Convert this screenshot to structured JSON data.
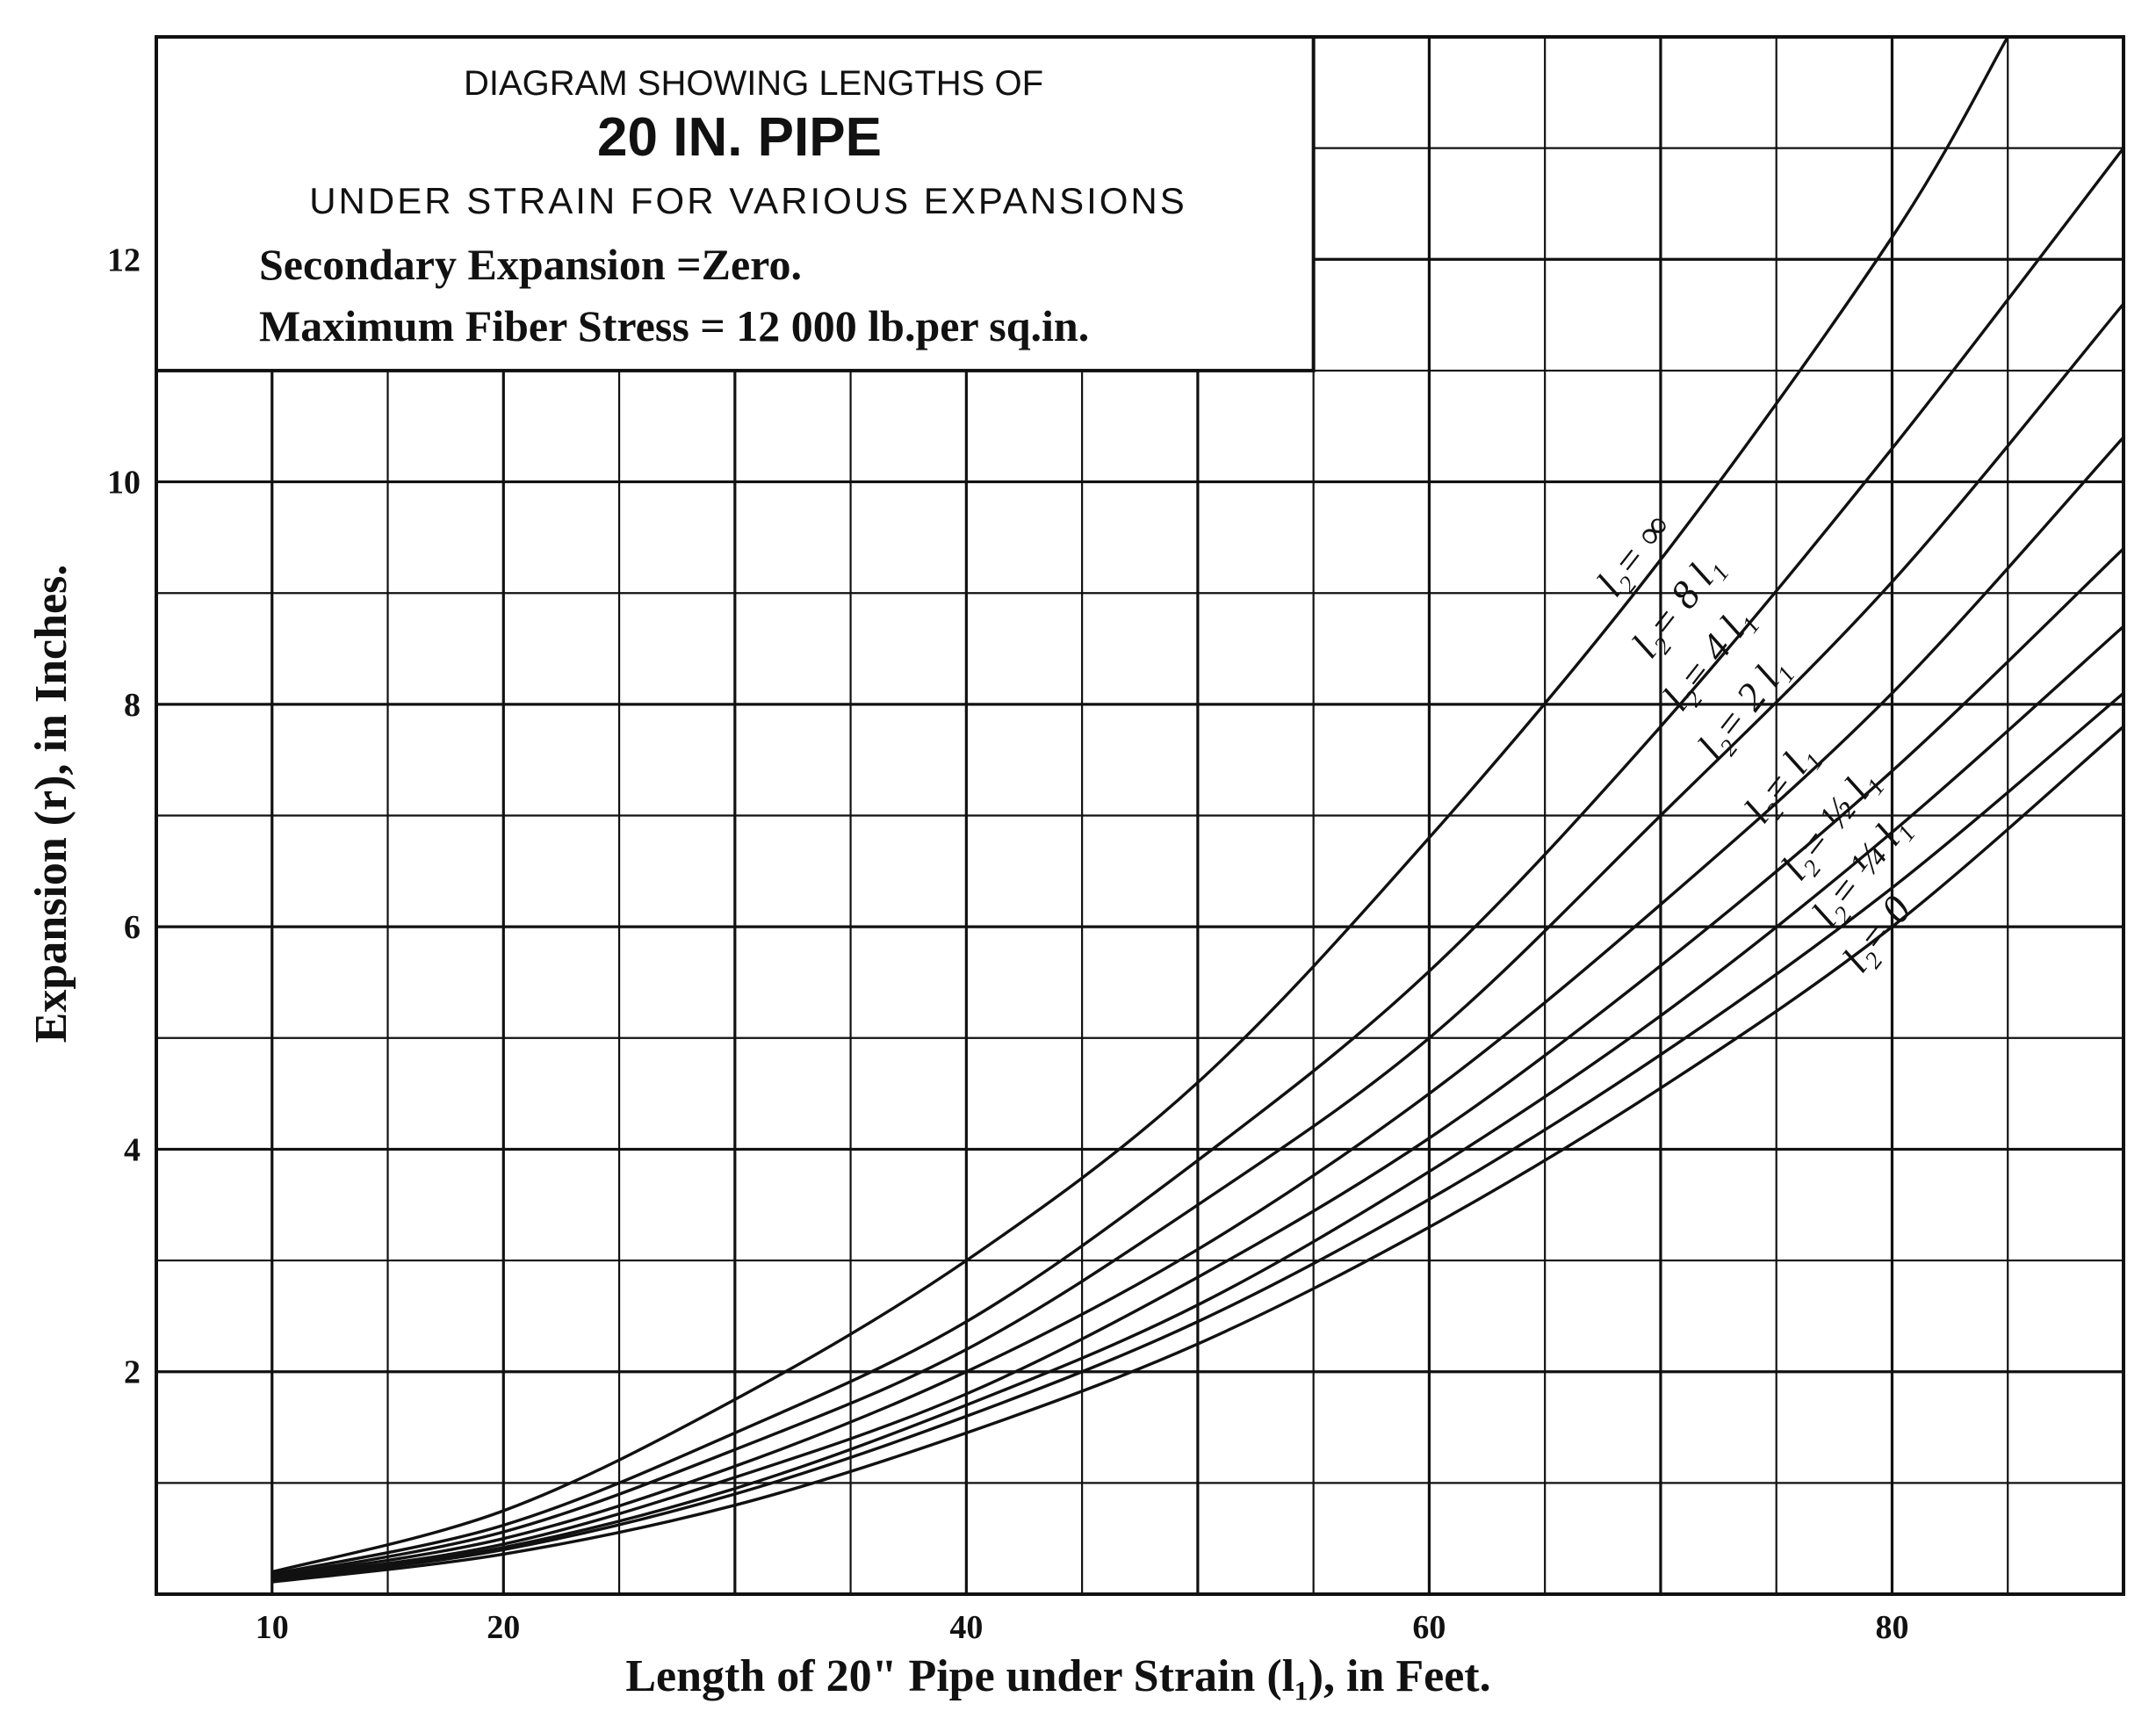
{
  "chart_data": {
    "type": "line",
    "title_lines": [
      "DIAGRAM SHOWING LENGTHS OF",
      "20 IN. PIPE",
      "UNDER STRAIN FOR VARIOUS EXPANSIONS",
      "Secondary Expansion =Zero.",
      "Maximum Fiber Stress = 12 000 lb.per sq.in."
    ],
    "xlabel": "Length of 20\" Pipe under Strain (l₁), in Feet.",
    "ylabel": "Expansion (r), in Inches.",
    "xlim": [
      5,
      90
    ],
    "ylim": [
      0,
      14
    ],
    "x_ticks": [
      10,
      20,
      40,
      60,
      80
    ],
    "y_ticks": [
      2,
      4,
      6,
      8,
      10,
      12
    ],
    "grid": true,
    "series": [
      {
        "name": "l₂= ∞",
        "x": [
          10,
          20,
          30,
          40,
          50,
          60,
          70,
          80,
          85
        ],
        "y": [
          0.2,
          0.75,
          1.75,
          3.0,
          4.6,
          6.8,
          9.3,
          12.2,
          14.0
        ]
      },
      {
        "name": "l₂= 8 l₁",
        "x": [
          10,
          20,
          30,
          40,
          50,
          60,
          70,
          80,
          90
        ],
        "y": [
          0.18,
          0.62,
          1.45,
          2.45,
          3.9,
          5.6,
          7.8,
          10.3,
          13.0
        ]
      },
      {
        "name": "l₂= 4 l₁",
        "x": [
          10,
          20,
          30,
          40,
          50,
          60,
          70,
          80,
          90
        ],
        "y": [
          0.16,
          0.56,
          1.3,
          2.2,
          3.5,
          5.0,
          7.0,
          9.1,
          11.6
        ]
      },
      {
        "name": "l₂= 2 l₁",
        "x": [
          10,
          20,
          30,
          40,
          50,
          60,
          70,
          80,
          90
        ],
        "y": [
          0.15,
          0.5,
          1.15,
          2.0,
          3.1,
          4.5,
          6.2,
          8.1,
          10.4
        ]
      },
      {
        "name": "l₂= l₁",
        "x": [
          10,
          20,
          30,
          40,
          50,
          60,
          70,
          80,
          90
        ],
        "y": [
          0.14,
          0.45,
          1.05,
          1.8,
          2.85,
          4.1,
          5.65,
          7.4,
          9.4
        ]
      },
      {
        "name": "l₂= ½ l₁",
        "x": [
          10,
          20,
          30,
          40,
          50,
          60,
          70,
          80,
          90
        ],
        "y": [
          0.13,
          0.42,
          0.95,
          1.7,
          2.6,
          3.8,
          5.2,
          6.85,
          8.7
        ]
      },
      {
        "name": "l₂= ¼ l₁",
        "x": [
          10,
          20,
          30,
          40,
          50,
          60,
          70,
          80,
          90
        ],
        "y": [
          0.12,
          0.4,
          0.9,
          1.6,
          2.45,
          3.55,
          4.85,
          6.35,
          8.1
        ]
      },
      {
        "name": "l₂= 0",
        "x": [
          10,
          20,
          30,
          40,
          50,
          60,
          70,
          80,
          90
        ],
        "y": [
          0.11,
          0.36,
          0.8,
          1.45,
          2.25,
          3.3,
          4.55,
          6.0,
          7.8
        ]
      }
    ]
  }
}
